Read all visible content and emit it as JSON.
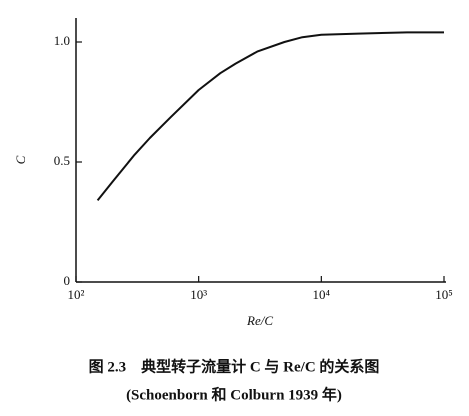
{
  "chart_data": {
    "type": "line",
    "x_label": "Re/C",
    "y_label": "C",
    "xscale": "log",
    "x": [
      150,
      200,
      300,
      400,
      600,
      1000,
      1500,
      2000,
      3000,
      5000,
      7000,
      10000,
      20000,
      50000,
      100000
    ],
    "series": [
      {
        "color": "#111111",
        "values": [
          0.34,
          0.42,
          0.53,
          0.6,
          0.69,
          0.8,
          0.87,
          0.91,
          0.96,
          1.0,
          1.02,
          1.03,
          1.035,
          1.04,
          1.04
        ]
      }
    ],
    "xlim": [
      100,
      100000
    ],
    "xticks": [
      {
        "value": 100,
        "label": "10²"
      },
      {
        "value": 1000,
        "label": "10³"
      },
      {
        "value": 10000,
        "label": "10⁴"
      },
      {
        "value": 100000,
        "label": "10⁵"
      }
    ],
    "ylim": [
      0,
      1.1
    ],
    "yticks": [
      0,
      0.5,
      {
        "value": 1,
        "label": "1.0"
      }
    ],
    "grid": false,
    "caption": [
      "图 2.3　典型转子流量计 C 与 Re/C 的关系图",
      "(Schoenborn 和 Colburn 1939 年)"
    ]
  }
}
